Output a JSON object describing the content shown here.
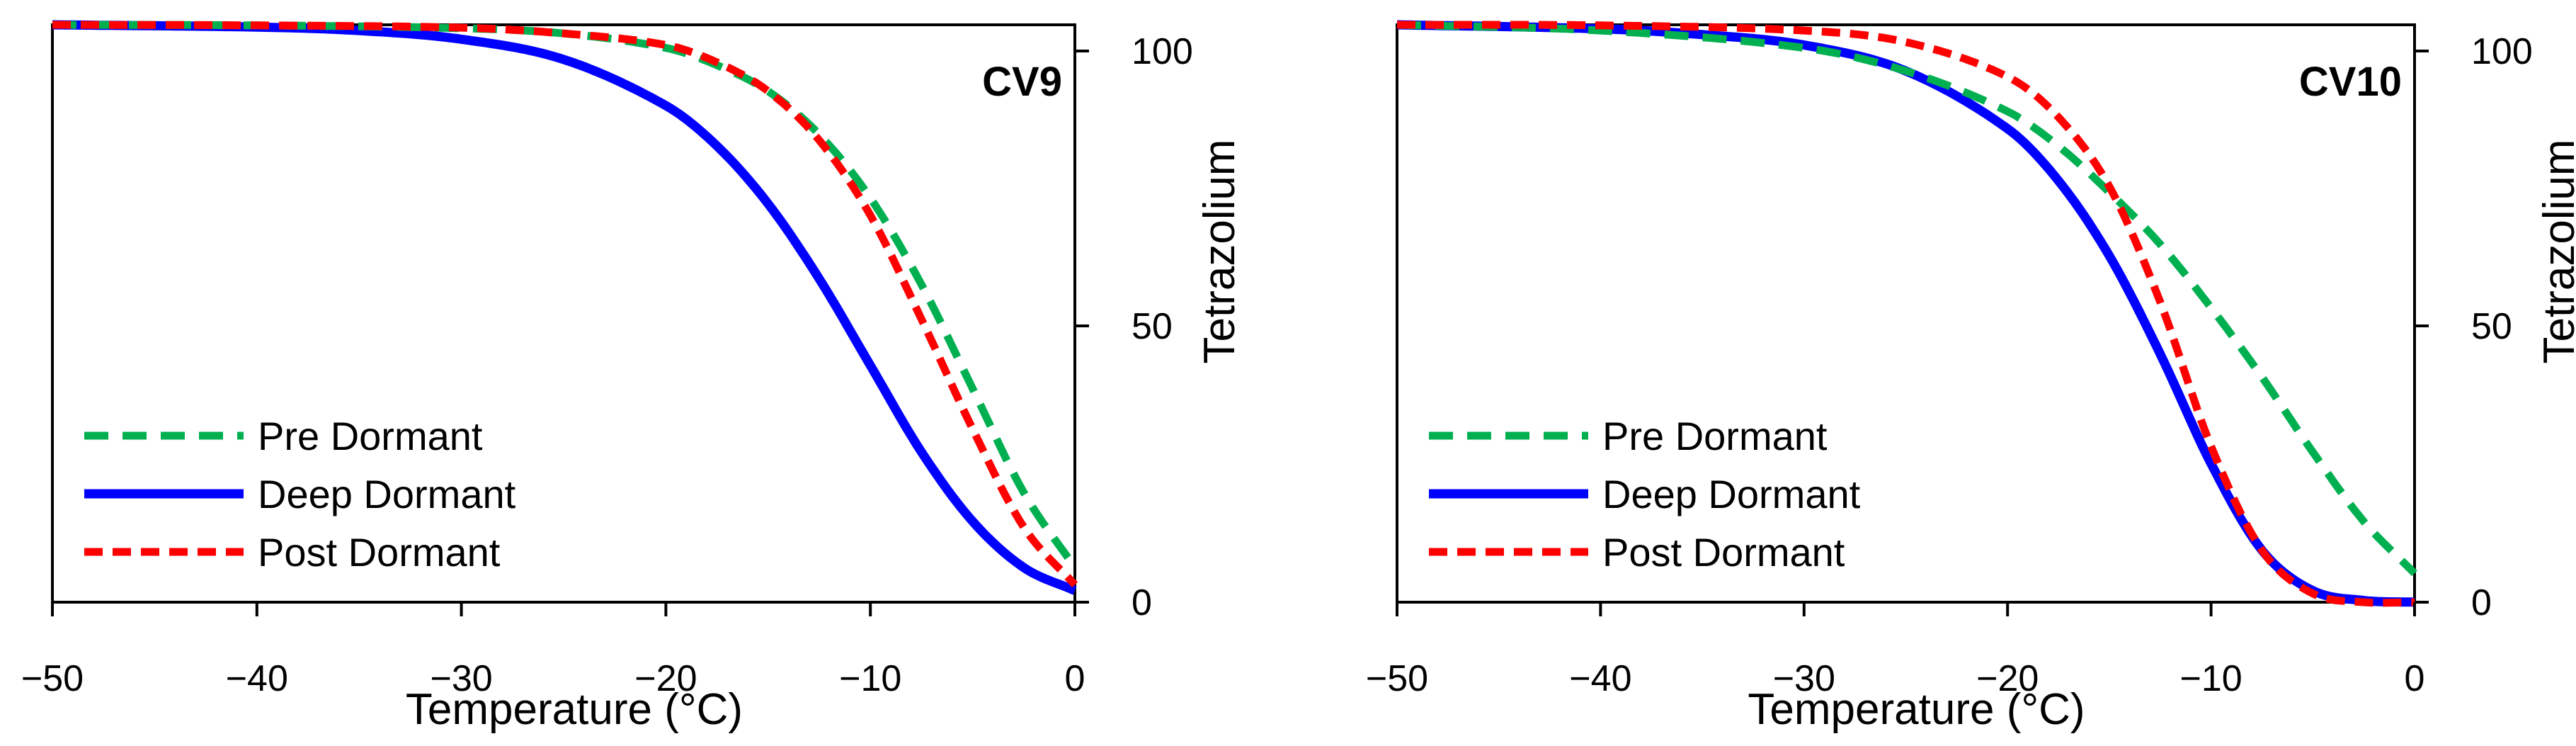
{
  "chart_data": [
    {
      "type": "line",
      "panel_label": "CV9",
      "xlabel": "Temperature (°C)",
      "ylabel": "Tetrazolium",
      "xlim": [
        -50,
        0
      ],
      "ylim": [
        0,
        100
      ],
      "xticks": [
        -50,
        -40,
        -30,
        -20,
        -10,
        0
      ],
      "xtick_labels": [
        "−50",
        "−40",
        "−30",
        "−20",
        "−10",
        "0"
      ],
      "yticks": [
        0,
        50,
        100
      ],
      "ytick_labels": [
        "0",
        "50",
        "100"
      ],
      "legend_position": "bottom-left",
      "series": [
        {
          "name": "Pre Dormant",
          "color": "#00b050",
          "style": "dashed",
          "x": [
            -50,
            -40,
            -30,
            -25,
            -20,
            -17.5,
            -15,
            -12.5,
            -10,
            -7.5,
            -5,
            -2.5,
            0
          ],
          "y": [
            100,
            99.9,
            99.4,
            98.5,
            96,
            93,
            88.5,
            81,
            70,
            55,
            37,
            19,
            6
          ]
        },
        {
          "name": "Deep Dormant",
          "color": "#0000ff",
          "style": "solid",
          "x": [
            -50,
            -40,
            -35,
            -30,
            -25,
            -20,
            -17.5,
            -15,
            -12.5,
            -10,
            -7.5,
            -5,
            -2.5,
            0
          ],
          "y": [
            100,
            99.6,
            99,
            97.5,
            94,
            86,
            79,
            69,
            56,
            41,
            26,
            14,
            6,
            2
          ]
        },
        {
          "name": "Post Dormant",
          "color": "#ff0000",
          "style": "dashed",
          "x": [
            -50,
            -40,
            -30,
            -25,
            -20,
            -17.5,
            -15,
            -12.5,
            -10,
            -7.5,
            -5,
            -2.5,
            0
          ],
          "y": [
            100,
            99.9,
            99.5,
            98.5,
            96.5,
            93.5,
            88.5,
            80,
            67,
            49,
            30,
            13,
            3
          ]
        }
      ]
    },
    {
      "type": "line",
      "panel_label": "CV10",
      "xlabel": "Temperature (°C)",
      "ylabel": "Tetrazolium",
      "xlim": [
        -50,
        0
      ],
      "ylim": [
        0,
        100
      ],
      "xticks": [
        -50,
        -40,
        -30,
        -20,
        -10,
        0
      ],
      "xtick_labels": [
        "−50",
        "−40",
        "−30",
        "−20",
        "−10",
        "0"
      ],
      "yticks": [
        0,
        50,
        100
      ],
      "ytick_labels": [
        "0",
        "50",
        "100"
      ],
      "legend_position": "bottom-left",
      "series": [
        {
          "name": "Pre Dormant",
          "color": "#00b050",
          "style": "dashed",
          "x": [
            -50,
            -40,
            -30,
            -25,
            -20,
            -17.5,
            -15,
            -12.5,
            -10,
            -7.5,
            -5,
            -2.5,
            0
          ],
          "y": [
            100,
            99,
            96,
            92,
            85,
            79,
            71,
            62,
            51,
            39,
            26,
            14,
            5
          ]
        },
        {
          "name": "Deep Dormant",
          "color": "#0000ff",
          "style": "solid",
          "x": [
            -50,
            -40,
            -35,
            -30,
            -25,
            -20,
            -17.5,
            -15,
            -12.5,
            -10,
            -7.5,
            -5,
            -2.5,
            0
          ],
          "y": [
            100,
            99.3,
            98.3,
            96.5,
            92,
            82,
            73,
            60,
            43,
            24,
            9,
            2,
            0.3,
            0
          ]
        },
        {
          "name": "Post Dormant",
          "color": "#ff0000",
          "style": "dashed",
          "x": [
            -50,
            -40,
            -30,
            -25,
            -20,
            -17.5,
            -15,
            -12.5,
            -10,
            -7.5,
            -5,
            -2.5,
            0
          ],
          "y": [
            100,
            99.9,
            99,
            97,
            91,
            84,
            72,
            52,
            27,
            9,
            1.5,
            0,
            0
          ]
        }
      ]
    }
  ]
}
